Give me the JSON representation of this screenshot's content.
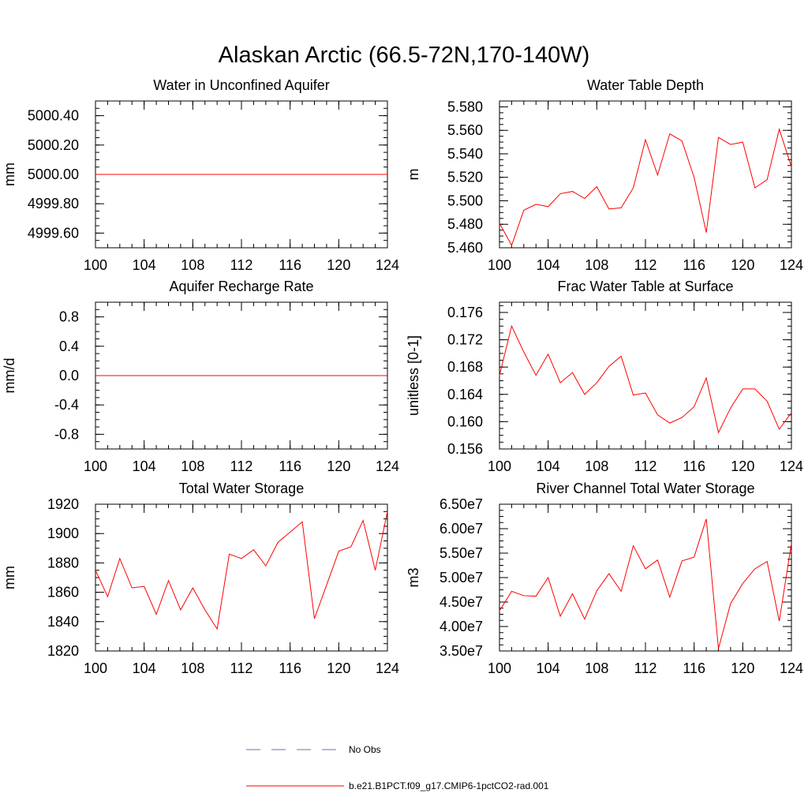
{
  "figure": {
    "title": "Alaskan Arctic (66.5-72N,170-140W)"
  },
  "legend": [
    {
      "label": "No Obs",
      "style": "dashed",
      "color": "#6f6fb0"
    },
    {
      "label": "b.e21.B1PCT.f09_g17.CMIP6-1pctCO2-rad.001",
      "style": "solid",
      "color": "#ff0000"
    }
  ],
  "chart_data": [
    {
      "type": "line",
      "title": "Water in Unconfined Aquifer",
      "ylabel": "mm",
      "xlim": [
        100,
        124
      ],
      "ylim": [
        4999.5,
        5000.5
      ],
      "xticks": [
        100,
        104,
        108,
        112,
        116,
        120,
        124
      ],
      "yticks": [
        4999.6,
        4999.8,
        5000.0,
        5000.2,
        5000.4
      ],
      "ytick_labels": [
        "4999.60",
        "4999.80",
        "5000.00",
        "5000.20",
        "5000.40"
      ],
      "x": [
        100,
        101,
        102,
        103,
        104,
        105,
        106,
        107,
        108,
        109,
        110,
        111,
        112,
        113,
        114,
        115,
        116,
        117,
        118,
        119,
        120,
        121,
        122,
        123,
        124
      ],
      "series": [
        {
          "color": "#ff0000",
          "values": [
            5000,
            5000,
            5000,
            5000,
            5000,
            5000,
            5000,
            5000,
            5000,
            5000,
            5000,
            5000,
            5000,
            5000,
            5000,
            5000,
            5000,
            5000,
            5000,
            5000,
            5000,
            5000,
            5000,
            5000,
            5000
          ]
        }
      ]
    },
    {
      "type": "line",
      "title": "Water Table Depth",
      "ylabel": "m",
      "xlim": [
        100,
        124
      ],
      "ylim": [
        5.46,
        5.585
      ],
      "xticks": [
        100,
        104,
        108,
        112,
        116,
        120,
        124
      ],
      "yticks": [
        5.46,
        5.48,
        5.5,
        5.52,
        5.54,
        5.56,
        5.58
      ],
      "ytick_labels": [
        "5.460",
        "5.480",
        "5.500",
        "5.520",
        "5.540",
        "5.560",
        "5.580"
      ],
      "x": [
        100,
        101,
        102,
        103,
        104,
        105,
        106,
        107,
        108,
        109,
        110,
        111,
        112,
        113,
        114,
        115,
        116,
        117,
        118,
        119,
        120,
        121,
        122,
        123,
        124
      ],
      "series": [
        {
          "color": "#ff0000",
          "values": [
            5.481,
            5.462,
            5.492,
            5.497,
            5.495,
            5.506,
            5.508,
            5.502,
            5.512,
            5.493,
            5.494,
            5.511,
            5.552,
            5.522,
            5.557,
            5.551,
            5.52,
            5.473,
            5.554,
            5.548,
            5.55,
            5.511,
            5.518,
            5.561,
            5.529
          ]
        }
      ]
    },
    {
      "type": "line",
      "title": "Aquifer Recharge Rate",
      "ylabel": "mm/d",
      "xlim": [
        100,
        124
      ],
      "ylim": [
        -1.0,
        1.0
      ],
      "xticks": [
        100,
        104,
        108,
        112,
        116,
        120,
        124
      ],
      "yticks": [
        -0.8,
        -0.4,
        0.0,
        0.4,
        0.8
      ],
      "ytick_labels": [
        "-0.8",
        "-0.4",
        "0.0",
        "0.4",
        "0.8"
      ],
      "x": [
        100,
        101,
        102,
        103,
        104,
        105,
        106,
        107,
        108,
        109,
        110,
        111,
        112,
        113,
        114,
        115,
        116,
        117,
        118,
        119,
        120,
        121,
        122,
        123,
        124
      ],
      "series": [
        {
          "color": "#ff0000",
          "values": [
            0,
            0,
            0,
            0,
            0,
            0,
            0,
            0,
            0,
            0,
            0,
            0,
            0,
            0,
            0,
            0,
            0,
            0,
            0,
            0,
            0,
            0,
            0,
            0,
            0
          ]
        }
      ]
    },
    {
      "type": "line",
      "title": "Frac Water Table at Surface",
      "ylabel": "unitless [0-1]",
      "xlim": [
        100,
        124
      ],
      "ylim": [
        0.156,
        0.1775
      ],
      "xticks": [
        100,
        104,
        108,
        112,
        116,
        120,
        124
      ],
      "yticks": [
        0.156,
        0.16,
        0.164,
        0.168,
        0.172,
        0.176
      ],
      "ytick_labels": [
        "0.156",
        "0.160",
        "0.164",
        "0.168",
        "0.172",
        "0.176"
      ],
      "x": [
        100,
        101,
        102,
        103,
        104,
        105,
        106,
        107,
        108,
        109,
        110,
        111,
        112,
        113,
        114,
        115,
        116,
        117,
        118,
        119,
        120,
        121,
        122,
        123,
        124
      ],
      "series": [
        {
          "color": "#ff0000",
          "values": [
            0.1668,
            0.174,
            0.1702,
            0.1668,
            0.1699,
            0.1657,
            0.1672,
            0.164,
            0.1657,
            0.1681,
            0.1696,
            0.1639,
            0.1642,
            0.161,
            0.1598,
            0.1606,
            0.1622,
            0.1664,
            0.1584,
            0.162,
            0.1648,
            0.1648,
            0.163,
            0.1589,
            0.1613
          ]
        }
      ]
    },
    {
      "type": "line",
      "title": "Total Water Storage",
      "ylabel": "mm",
      "xlim": [
        100,
        124
      ],
      "ylim": [
        1820,
        1920
      ],
      "xticks": [
        100,
        104,
        108,
        112,
        116,
        120,
        124
      ],
      "yticks": [
        1820,
        1840,
        1860,
        1880,
        1900,
        1920
      ],
      "ytick_labels": [
        "1820",
        "1840",
        "1860",
        "1880",
        "1900",
        "1920"
      ],
      "x": [
        100,
        101,
        102,
        103,
        104,
        105,
        106,
        107,
        108,
        109,
        110,
        111,
        112,
        113,
        114,
        115,
        116,
        117,
        118,
        119,
        120,
        121,
        122,
        123,
        124
      ],
      "series": [
        {
          "color": "#ff0000",
          "values": [
            1875,
            1857,
            1883,
            1863,
            1864,
            1845,
            1868,
            1848,
            1863,
            1848,
            1835,
            1886,
            1883,
            1889,
            1878,
            1894,
            1901,
            1908,
            1842,
            1865,
            1888,
            1891,
            1909,
            1875,
            1915
          ]
        }
      ]
    },
    {
      "type": "line",
      "title": "River Channel Total Water Storage",
      "ylabel": "m3",
      "xlim": [
        100,
        124
      ],
      "ylim": [
        35000000,
        65000000
      ],
      "xticks": [
        100,
        104,
        108,
        112,
        116,
        120,
        124
      ],
      "yticks": [
        35000000,
        40000000,
        45000000,
        50000000,
        55000000,
        60000000,
        65000000
      ],
      "ytick_labels": [
        "3.50e7",
        "4.00e7",
        "4.50e7",
        "5.00e7",
        "5.50e7",
        "6.00e7",
        "6.50e7"
      ],
      "x": [
        100,
        101,
        102,
        103,
        104,
        105,
        106,
        107,
        108,
        109,
        110,
        111,
        112,
        113,
        114,
        115,
        116,
        117,
        118,
        119,
        120,
        121,
        122,
        123,
        124
      ],
      "series": [
        {
          "color": "#ff0000",
          "values": [
            43200000,
            47200000,
            46300000,
            46200000,
            50000000,
            42100000,
            46700000,
            41500000,
            47300000,
            50800000,
            47200000,
            56500000,
            51800000,
            53600000,
            46000000,
            53400000,
            54200000,
            62000000,
            35500000,
            44700000,
            48800000,
            51800000,
            53300000,
            41100000,
            57000000
          ]
        }
      ]
    }
  ]
}
